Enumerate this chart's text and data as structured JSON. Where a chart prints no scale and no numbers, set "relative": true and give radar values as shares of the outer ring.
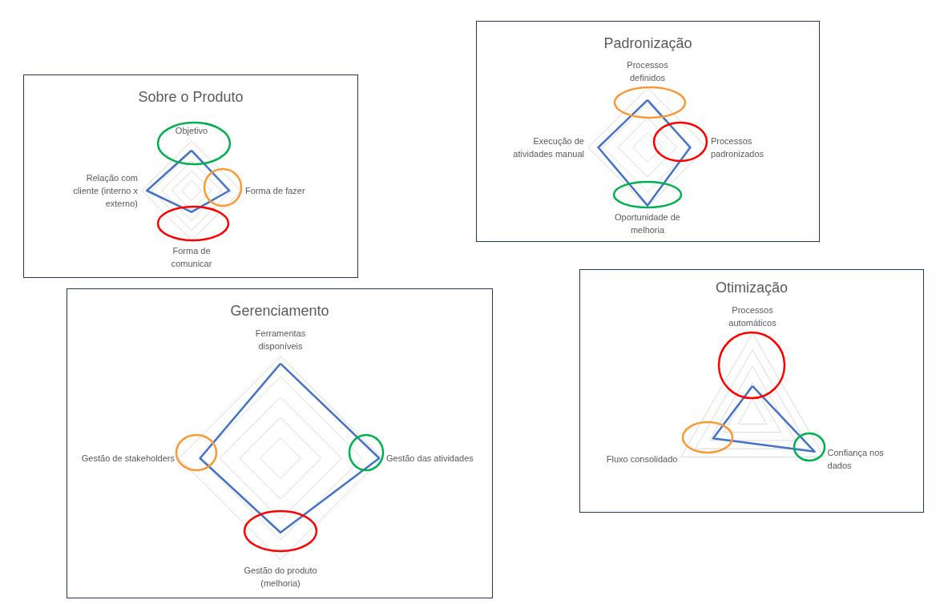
{
  "chart_data": [
    {
      "type": "radar",
      "title": "Sobre o Produto",
      "categories": [
        "Objetivo",
        "Forma de fazer",
        "Forma de comunicar",
        "Relação com cliente (interno x externo)"
      ],
      "values": [
        0.81,
        0.76,
        0.43,
        0.9
      ],
      "color": "#4472c4",
      "relative": true,
      "grid": true,
      "marker": "none"
    },
    {
      "type": "radar",
      "title": "Padronização",
      "categories": [
        "Processos definidos",
        "Processos padronizados",
        "Oportunidade de melhoria",
        "Execução de atividades manual"
      ],
      "values": [
        0.8,
        0.72,
        0.98,
        0.83
      ],
      "color": "#4472c4",
      "relative": true,
      "grid": true,
      "marker": "none"
    },
    {
      "type": "radar",
      "title": "Gerenciamento",
      "categories": [
        "Ferramentas disponíveis",
        "Gestão das atividades",
        "Gestão do produto (melhoria)",
        "Gestão de stakeholders"
      ],
      "values": [
        0.93,
        0.97,
        0.73,
        0.79
      ],
      "color": "#4472c4",
      "relative": true,
      "grid": true,
      "marker": "none"
    },
    {
      "type": "radar",
      "title": "Otimização",
      "categories": [
        "Processos automáticos",
        "Confiança nos dados",
        "Fluxo consolidado"
      ],
      "values": [
        0.36,
        0.87,
        0.55
      ],
      "color": "#4472c4",
      "relative": true,
      "grid": true,
      "marker": "none"
    }
  ]
}
